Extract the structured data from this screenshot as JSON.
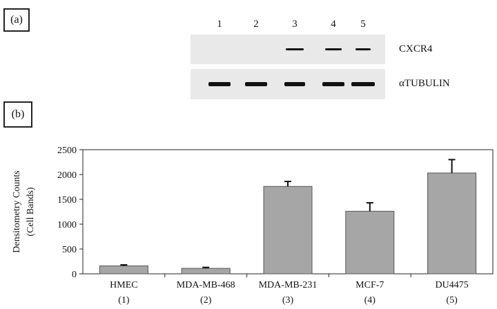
{
  "figure": {
    "panel_a_label": "(a)",
    "panel_b_label": "(b)",
    "lanes": [
      "1",
      "2",
      "3",
      "4",
      "5"
    ],
    "blots": [
      {
        "label": "CXCR4",
        "bands": [
          0,
          0,
          0.55,
          0.5,
          0.5
        ]
      },
      {
        "label": "αTUBULIN",
        "bands": [
          1,
          1,
          1,
          1,
          1
        ]
      }
    ]
  },
  "colors": {
    "bar": "#a6a6a6",
    "bar_edge": "#555555",
    "band": "#111111",
    "blot_bg": "#e9e9e9"
  },
  "chart_data": {
    "type": "bar",
    "categories": [
      "HMEC",
      "MDA-MB-468",
      "MDA-MB-231",
      "MCF-7",
      "DU4475"
    ],
    "category_numbers": [
      "(1)",
      "(2)",
      "(3)",
      "(4)",
      "(5)"
    ],
    "values": [
      160,
      110,
      1760,
      1260,
      2030
    ],
    "errors": [
      20,
      20,
      100,
      170,
      270
    ],
    "ylabel": [
      "Densitometry Counts",
      "(Cell Bands)"
    ],
    "xlabel": "",
    "ylim": [
      0,
      2500
    ],
    "yticks": [
      0,
      500,
      1000,
      1500,
      2000,
      2500
    ],
    "grid": false
  }
}
